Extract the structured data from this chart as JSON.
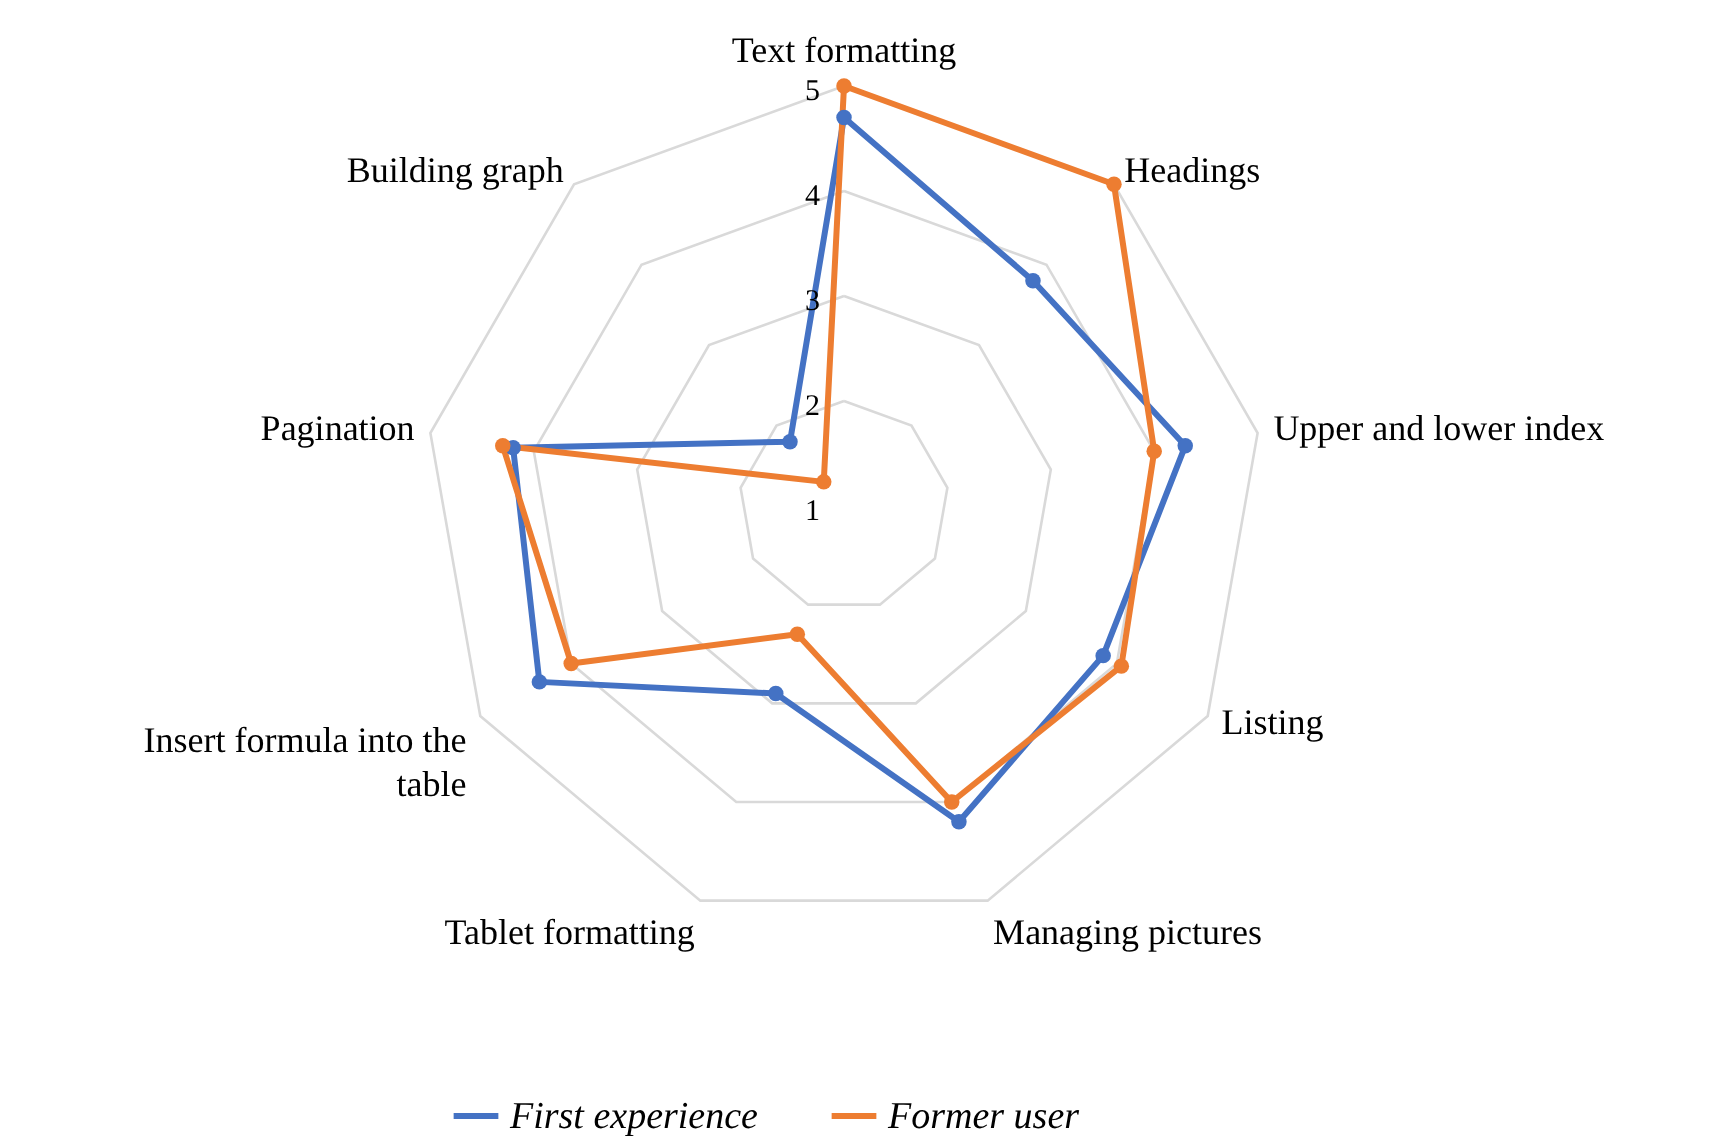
{
  "chart_data": {
    "type": "radar",
    "categories": [
      "Text formatting",
      "Headings",
      "Upper and lower index",
      "Listing",
      "Managing pictures",
      "Tablet formatting",
      "Insert formula into the table",
      "Pagination",
      "Building graph"
    ],
    "series": [
      {
        "name": "First experience",
        "color": "#4472c4",
        "values": [
          4.7,
          3.8,
          4.3,
          3.85,
          4.2,
          2.9,
          4.35,
          4.2,
          1.8
        ]
      },
      {
        "name": "Former user",
        "color": "#ed7d31",
        "values": [
          5,
          5,
          4.0,
          4.05,
          4.0,
          2.3,
          4.0,
          4.3,
          1.3
        ]
      }
    ],
    "ylim": [
      1,
      5
    ],
    "yticks": [
      1,
      2,
      3,
      4,
      5
    ],
    "grid": true,
    "legend": "bottom",
    "marker": "circle",
    "line_style": "solid"
  }
}
